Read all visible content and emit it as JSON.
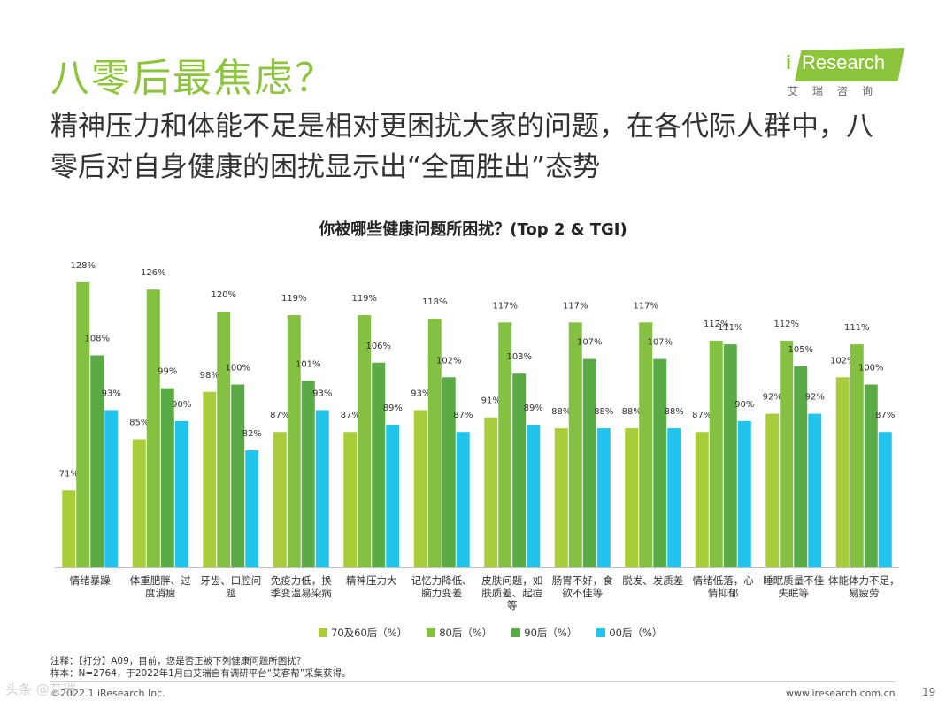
{
  "header": {
    "title": "八零后最焦虑？",
    "subtitle": "精神压力和体能不足是相对更困扰大家的问题，在各代际人群中，八零后对自身健康的困扰显示出“全面胜出”态势"
  },
  "logo": {
    "i": "i",
    "text": "Research",
    "cn": "艾瑞咨询"
  },
  "colors": {
    "accent": "#8cc43c",
    "series": [
      "#a9cd3a",
      "#84c041",
      "#5aab46",
      "#20c4ec"
    ]
  },
  "chart_data": {
    "type": "bar",
    "title": "你被哪些健康问题所困扰？(Top 2 & TGI)",
    "categories": [
      [
        "情绪暴躁"
      ],
      [
        "体重肥胖、过",
        "度消瘦"
      ],
      [
        "牙齿、口腔问",
        "题"
      ],
      [
        "免疫力低，换",
        "季变温易染病"
      ],
      [
        "精神压力大"
      ],
      [
        "记忆力降低、",
        "脑力变差"
      ],
      [
        "皮肤问题，如",
        "肤质差、起痘",
        "等"
      ],
      [
        "肠胃不好，食",
        "欲不佳等"
      ],
      [
        "脱发、发质差"
      ],
      [
        "情绪低落，心",
        "情抑郁"
      ],
      [
        "睡眠质量不佳",
        "失眠等"
      ],
      [
        "体能体力不足，",
        "易疲劳"
      ]
    ],
    "series": [
      {
        "name": "70及60后（%）",
        "values": [
          71,
          85,
          98,
          87,
          87,
          93,
          91,
          88,
          88,
          87,
          92,
          102
        ]
      },
      {
        "name": "80后（%）",
        "values": [
          128,
          126,
          120,
          119,
          119,
          118,
          117,
          117,
          117,
          112,
          112,
          111
        ]
      },
      {
        "name": "90后（%）",
        "values": [
          108,
          99,
          100,
          101,
          106,
          102,
          103,
          107,
          107,
          111,
          105,
          100
        ]
      },
      {
        "name": "00后（%）",
        "values": [
          93,
          90,
          82,
          93,
          89,
          87,
          89,
          88,
          88,
          90,
          92,
          87
        ]
      }
    ],
    "unit": "%",
    "ylim": [
      50,
      135
    ]
  },
  "notes": {
    "line1": "注释：【打分】A09，目前，您是否正被下列健康问题所困扰？",
    "line2": "样本：N=2764，于2022年1月由艾瑞自有调研平台“艾客帮”采集获得。"
  },
  "footer": {
    "copyright": "©2022.1 iResearch Inc.",
    "website": "www.iresearch.com.cn",
    "page": "19",
    "watermark": "头条 @艾瑞"
  }
}
